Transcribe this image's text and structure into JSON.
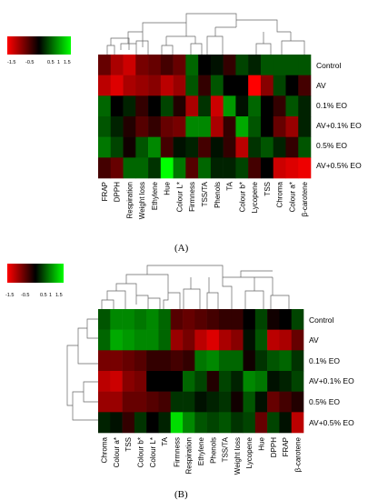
{
  "legend": {
    "ticks": [
      "-1.5",
      "-0.5",
      "0.5",
      "1",
      "1.5"
    ],
    "colors": {
      "low": "#ff0000",
      "mid": "#000000",
      "high": "#00ff00"
    }
  },
  "chart_data": [
    {
      "type": "heatmap",
      "panel_label": "(A)",
      "color_range": [
        -1.5,
        1.5
      ],
      "rows": [
        "Control",
        "AV",
        "0.1% EO",
        "AV+0.1% EO",
        "0.5% EO",
        "AV+0.5% EO"
      ],
      "columns": [
        "FRAP",
        "DPPH",
        "Respiration",
        "Weight loss",
        "Ethylene",
        "Hue",
        "Colour L*",
        "Firmness",
        "TSS/TA",
        "Phenols",
        "TA",
        "Colour b*",
        "Lycopene",
        "TSS",
        "Chroma",
        "Colour a*",
        "β-carotene"
      ],
      "values": [
        [
          -0.6,
          -1.0,
          -1.2,
          -0.7,
          -0.6,
          -0.4,
          -0.6,
          0.6,
          0.0,
          0.1,
          -0.3,
          0.4,
          0.2,
          0.5,
          0.5,
          0.5,
          0.5
        ],
        [
          -1.1,
          -1.3,
          -1.0,
          -0.9,
          -0.8,
          -1.1,
          -0.9,
          0.5,
          -0.3,
          0.5,
          0.0,
          0.0,
          -1.5,
          -0.8,
          0.4,
          0.0,
          -0.4
        ],
        [
          0.6,
          0.0,
          0.2,
          -0.3,
          0.0,
          0.4,
          -0.2,
          -1.0,
          0.3,
          -1.2,
          0.9,
          0.1,
          0.6,
          0.0,
          -0.3,
          0.5,
          0.2
        ],
        [
          0.5,
          0.2,
          -0.2,
          -0.5,
          -0.3,
          -0.6,
          -0.7,
          0.8,
          0.8,
          -1.0,
          -0.3,
          1.0,
          0.5,
          0.0,
          -0.6,
          -0.9,
          0.2
        ],
        [
          0.7,
          0.4,
          -0.1,
          0.5,
          0.8,
          -0.4,
          0.1,
          0.2,
          -0.4,
          0.1,
          -0.3,
          -1.1,
          0.3,
          0.5,
          0.2,
          -0.3,
          0.5
        ],
        [
          -0.4,
          -0.6,
          0.6,
          0.6,
          0.3,
          1.5,
          0.7,
          -0.5,
          0.6,
          0.2,
          0.2,
          0.4,
          -0.4,
          0.0,
          -1.2,
          -1.3,
          -1.4
        ]
      ]
    },
    {
      "type": "heatmap",
      "panel_label": "(B)",
      "color_range": [
        -1.5,
        1.5
      ],
      "rows": [
        "Control",
        "AV",
        "0.1% EO",
        "AV+0.1% EO",
        "0.5% EO",
        "AV+0.5% EO"
      ],
      "columns": [
        "Chroma",
        "Colour a*",
        "TSS",
        "Colour b*",
        "Colour L*",
        "TA",
        "Firmness",
        "Respiration",
        "Ethylene",
        "Phenols",
        "TSS/TA",
        "Weight loss",
        "Lycopene",
        "Hue",
        "DPPH",
        "FRAP",
        "β-carotene"
      ],
      "values": [
        [
          0.5,
          0.8,
          0.8,
          0.7,
          0.8,
          0.6,
          -0.5,
          -0.6,
          -0.5,
          -0.4,
          -0.3,
          -0.3,
          0.0,
          0.4,
          -0.1,
          0.0,
          0.4
        ],
        [
          0.6,
          1.0,
          0.9,
          0.8,
          0.8,
          0.6,
          -0.9,
          -0.7,
          -1.1,
          -1.3,
          -1.0,
          -0.8,
          0.1,
          0.5,
          -1.1,
          -1.0,
          -0.6
        ],
        [
          -0.7,
          -0.7,
          -0.6,
          -0.5,
          -0.3,
          -0.3,
          -0.4,
          -0.3,
          0.7,
          0.8,
          0.6,
          0.6,
          -0.1,
          0.3,
          0.5,
          0.6,
          0.3
        ],
        [
          -1.1,
          -1.2,
          -0.8,
          -0.7,
          0.0,
          0.0,
          0.0,
          0.6,
          0.4,
          -0.2,
          0.4,
          0.2,
          0.8,
          0.7,
          0.1,
          0.2,
          0.4
        ],
        [
          -0.9,
          -0.9,
          -0.6,
          -0.6,
          -0.5,
          -0.4,
          0.3,
          0.3,
          0.1,
          0.2,
          0.3,
          -0.1,
          0.5,
          0.1,
          -0.6,
          -0.4,
          -0.2
        ],
        [
          0.2,
          0.1,
          -0.3,
          0.3,
          0.0,
          0.2,
          1.3,
          0.8,
          0.5,
          0.4,
          0.5,
          0.3,
          0.4,
          -0.6,
          0.4,
          0.1,
          -1.1
        ]
      ]
    }
  ]
}
